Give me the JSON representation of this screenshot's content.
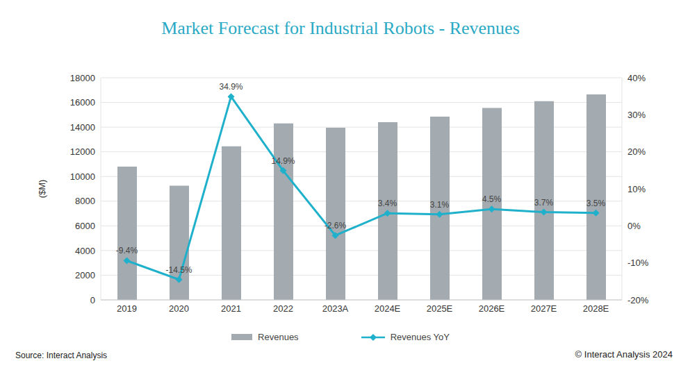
{
  "chart_data": {
    "type": "bar",
    "title": "Market Forecast for Industrial Robots - Revenues",
    "ylabel": "($M)",
    "source": "Source: Interact Analysis",
    "copyright": "© Interact Analysis 2024",
    "categories": [
      "2019",
      "2020",
      "2021",
      "2022",
      "2023A",
      "2024E",
      "2025E",
      "2026E",
      "2027E",
      "2028E"
    ],
    "series": [
      {
        "name": "Revenues",
        "type": "bar",
        "color": "#a3aab0",
        "values": [
          10800,
          9250,
          12450,
          14300,
          13950,
          14400,
          14850,
          15550,
          16100,
          16650
        ]
      },
      {
        "name": "Revenues YoY",
        "type": "line",
        "axis": "y2",
        "color": "#1fb0cb",
        "marker": "diamond",
        "data_labels": true,
        "values": [
          -9.4,
          -14.5,
          34.9,
          14.9,
          -2.6,
          3.4,
          3.1,
          4.5,
          3.7,
          3.5
        ],
        "value_labels": [
          "-9.4%",
          "-14.5%",
          "34.9%",
          "14.9%",
          "-2.6%",
          "3.4%",
          "3.1%",
          "4.5%",
          "3.7%",
          "3.5%"
        ]
      }
    ],
    "ylim": [
      0,
      18000
    ],
    "yticks": [
      0,
      2000,
      4000,
      6000,
      8000,
      10000,
      12000,
      14000,
      16000,
      18000
    ],
    "y2lim": [
      -20,
      40
    ],
    "y2ticks": [
      {
        "value": -20,
        "label": "-20%"
      },
      {
        "value": -10,
        "label": "-10%"
      },
      {
        "value": 0,
        "label": "0%"
      },
      {
        "value": 10,
        "label": "10%"
      },
      {
        "value": 20,
        "label": "20%"
      },
      {
        "value": 30,
        "label": "30%"
      },
      {
        "value": 40,
        "label": "40%"
      }
    ],
    "grid": true,
    "legend": "bottom"
  }
}
